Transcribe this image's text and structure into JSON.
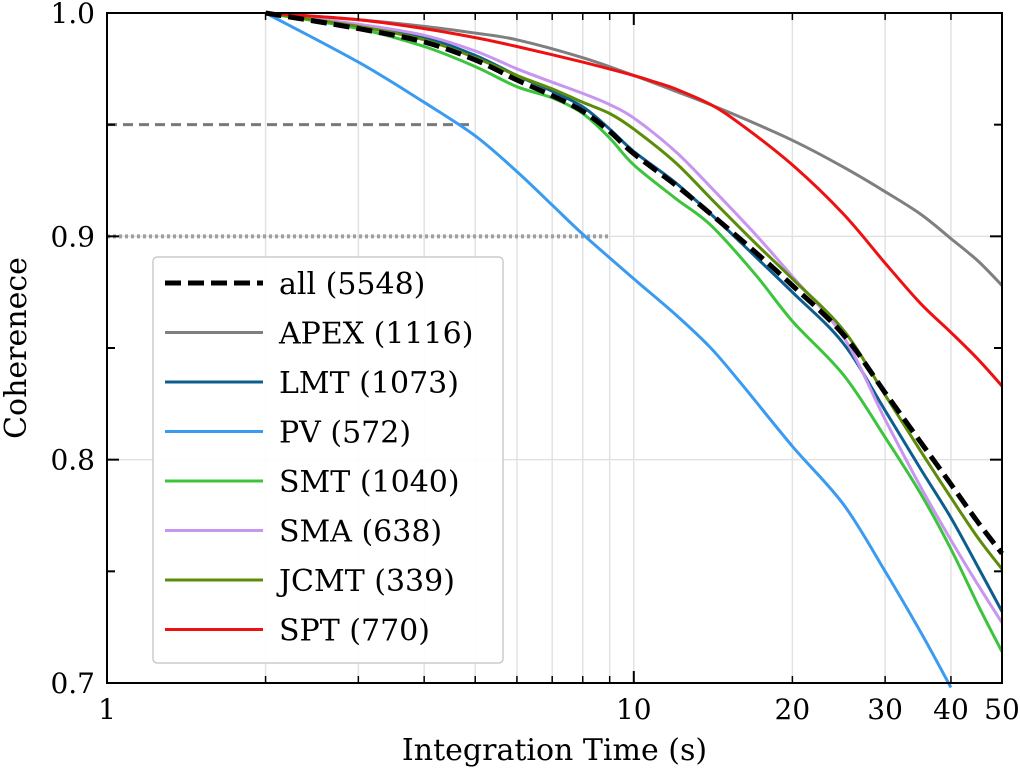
{
  "chart_data": {
    "type": "line",
    "xlabel": "Integration Time (s)",
    "ylabel": "Coherenece",
    "xscale": "log",
    "xlim": [
      1,
      50
    ],
    "ylim": [
      0.7,
      1.0
    ],
    "xticks": [
      {
        "value": 1,
        "label": "1"
      },
      {
        "value": 10,
        "label": "10"
      },
      {
        "value": 20,
        "label": "20"
      },
      {
        "value": 30,
        "label": "30"
      },
      {
        "value": 40,
        "label": "40"
      },
      {
        "value": 50,
        "label": "50"
      }
    ],
    "yticks": [
      {
        "value": 0.7,
        "label": "0.7"
      },
      {
        "value": 0.8,
        "label": "0.8"
      },
      {
        "value": 0.9,
        "label": "0.9"
      },
      {
        "value": 1.0,
        "label": "1.0"
      }
    ],
    "grid": true,
    "legend_position": "lower-left",
    "reference_lines": [
      {
        "name": "0.95 level",
        "y": 0.95,
        "x_end": 4.9,
        "style": "dashed",
        "color": "#7a7a7a"
      },
      {
        "name": "0.90 level",
        "y": 0.9,
        "x_end": 9.0,
        "style": "dotted",
        "color": "#a0a0a0"
      }
    ],
    "series": [
      {
        "name": "all (5548)",
        "color": "#000000",
        "style": "dashed",
        "width": 5,
        "x": [
          2,
          3,
          4,
          5,
          6,
          7,
          8,
          9,
          10,
          12,
          14,
          17,
          20,
          25,
          30,
          35,
          40,
          45,
          50
        ],
        "y": [
          1.0,
          0.993,
          0.987,
          0.979,
          0.97,
          0.963,
          0.956,
          0.947,
          0.937,
          0.923,
          0.91,
          0.893,
          0.878,
          0.856,
          0.83,
          0.808,
          0.789,
          0.772,
          0.758
        ]
      },
      {
        "name": "APEX (1116)",
        "color": "#7f7f7f",
        "style": "solid",
        "width": 3,
        "x": [
          2,
          3,
          4,
          5,
          6,
          8,
          10,
          12,
          15,
          20,
          25,
          30,
          35,
          40,
          45,
          50
        ],
        "y": [
          1.0,
          0.997,
          0.994,
          0.991,
          0.988,
          0.98,
          0.972,
          0.965,
          0.956,
          0.943,
          0.931,
          0.92,
          0.91,
          0.899,
          0.889,
          0.878
        ]
      },
      {
        "name": "LMT (1073)",
        "color": "#0d5d8f",
        "style": "solid",
        "width": 3,
        "x": [
          2,
          3,
          4,
          5,
          6,
          7,
          8,
          9,
          10,
          12,
          14,
          17,
          20,
          25,
          30,
          35,
          40,
          45,
          50
        ],
        "y": [
          1.0,
          0.994,
          0.989,
          0.981,
          0.972,
          0.965,
          0.958,
          0.948,
          0.938,
          0.924,
          0.91,
          0.891,
          0.875,
          0.852,
          0.822,
          0.796,
          0.774,
          0.752,
          0.732
        ]
      },
      {
        "name": "PV (572)",
        "color": "#3a9bf0",
        "style": "solid",
        "width": 3,
        "x": [
          2,
          3,
          4,
          5,
          6,
          7,
          8,
          10,
          12,
          14,
          16,
          20,
          25,
          30,
          35,
          40
        ],
        "y": [
          1.0,
          0.978,
          0.96,
          0.945,
          0.929,
          0.914,
          0.901,
          0.881,
          0.865,
          0.85,
          0.834,
          0.806,
          0.78,
          0.75,
          0.723,
          0.698
        ]
      },
      {
        "name": "SMT (1040)",
        "color": "#3cc43c",
        "style": "solid",
        "width": 3,
        "x": [
          2,
          3,
          4,
          5,
          6,
          7,
          8,
          9,
          10,
          12,
          14,
          17,
          20,
          25,
          30,
          35,
          40,
          45,
          50
        ],
        "y": [
          1.0,
          0.993,
          0.985,
          0.976,
          0.967,
          0.962,
          0.955,
          0.944,
          0.932,
          0.917,
          0.905,
          0.883,
          0.862,
          0.838,
          0.81,
          0.785,
          0.76,
          0.735,
          0.714
        ]
      },
      {
        "name": "SMA (638)",
        "color": "#c896ef",
        "style": "solid",
        "width": 3,
        "x": [
          2,
          3,
          4,
          5,
          6,
          7,
          8,
          9,
          10,
          12,
          14,
          17,
          20,
          25,
          30,
          35,
          40,
          45,
          50
        ],
        "y": [
          1.0,
          0.995,
          0.99,
          0.983,
          0.975,
          0.969,
          0.964,
          0.959,
          0.953,
          0.938,
          0.922,
          0.901,
          0.882,
          0.855,
          0.818,
          0.788,
          0.764,
          0.744,
          0.727
        ]
      },
      {
        "name": "JCMT (339)",
        "color": "#5c8c0a",
        "style": "solid",
        "width": 3,
        "x": [
          2,
          3,
          4,
          5,
          6,
          7,
          8,
          9,
          10,
          12,
          14,
          17,
          20,
          25,
          30,
          35,
          40,
          45,
          50
        ],
        "y": [
          1.0,
          0.994,
          0.988,
          0.98,
          0.972,
          0.966,
          0.96,
          0.955,
          0.948,
          0.933,
          0.917,
          0.897,
          0.881,
          0.858,
          0.829,
          0.804,
          0.783,
          0.765,
          0.751
        ]
      },
      {
        "name": "SPT (770)",
        "color": "#ee1111",
        "style": "solid",
        "width": 3,
        "x": [
          2,
          3,
          4,
          5,
          6,
          8,
          10,
          11,
          12,
          14,
          16,
          20,
          25,
          30,
          35,
          40,
          45,
          50
        ],
        "y": [
          1.0,
          0.997,
          0.993,
          0.989,
          0.985,
          0.978,
          0.972,
          0.969,
          0.966,
          0.959,
          0.95,
          0.932,
          0.91,
          0.888,
          0.87,
          0.857,
          0.845,
          0.833
        ]
      }
    ]
  }
}
